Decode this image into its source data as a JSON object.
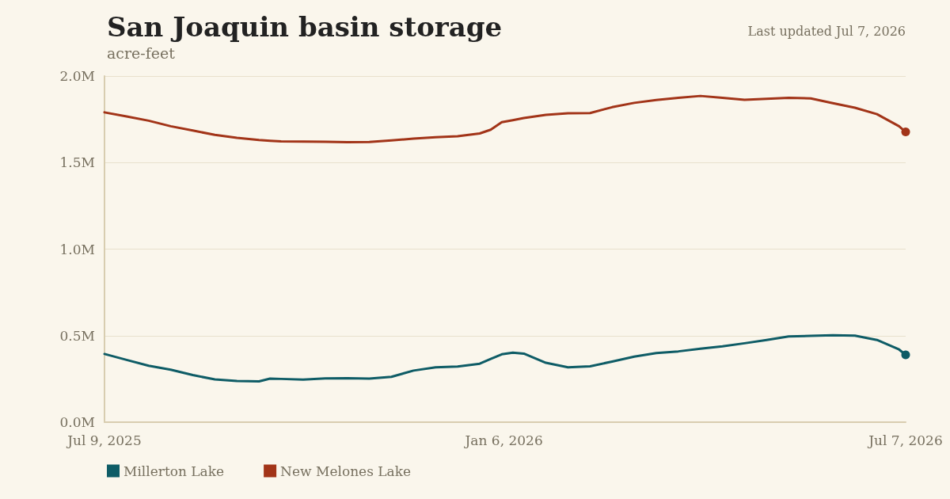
{
  "chart_data": {
    "type": "line",
    "title": "San Joaquin basin storage",
    "subtitle": "acre-feet",
    "annotations": [
      "Last updated Jul 7, 2026"
    ],
    "x": [
      "2025-07-09",
      "2025-07-19",
      "2025-07-29",
      "2025-08-08",
      "2025-08-18",
      "2025-08-28",
      "2025-09-07",
      "2025-09-17",
      "2025-09-22",
      "2025-09-27",
      "2025-10-07",
      "2025-10-17",
      "2025-10-27",
      "2025-11-06",
      "2025-11-16",
      "2025-11-26",
      "2025-12-06",
      "2025-12-16",
      "2025-12-26",
      "2025-12-31",
      "2026-01-05",
      "2026-01-10",
      "2026-01-15",
      "2026-01-25",
      "2026-02-04",
      "2026-02-14",
      "2026-02-24",
      "2026-03-06",
      "2026-03-16",
      "2026-03-26",
      "2026-04-05",
      "2026-04-15",
      "2026-04-25",
      "2026-05-05",
      "2026-05-15",
      "2026-05-25",
      "2026-06-04",
      "2026-06-14",
      "2026-06-24",
      "2026-07-04",
      "2026-07-07"
    ],
    "series": [
      {
        "name": "Millerton Lake",
        "color": "#0e5c66",
        "values": [
          394000,
          360000,
          326000,
          303000,
          272000,
          247000,
          238000,
          236000,
          252000,
          250000,
          246000,
          253000,
          254000,
          252000,
          262000,
          298000,
          317000,
          322000,
          338000,
          366000,
          392000,
          402000,
          396000,
          343000,
          317000,
          323000,
          350000,
          379000,
          399000,
          409000,
          424000,
          438000,
          456000,
          475000,
          495000,
          499000,
          502000,
          500000,
          475000,
          420000,
          389000
        ]
      },
      {
        "name": "New Melones Lake",
        "color": "#a23418",
        "values": [
          1790000,
          1767000,
          1742000,
          1710000,
          1685000,
          1660000,
          1643000,
          1630000,
          1626000,
          1622000,
          1621000,
          1620000,
          1618000,
          1619000,
          1628000,
          1638000,
          1647000,
          1652000,
          1668000,
          1690000,
          1733000,
          1745000,
          1757000,
          1776000,
          1785000,
          1786000,
          1820000,
          1845000,
          1862000,
          1874000,
          1885000,
          1874000,
          1863000,
          1868000,
          1874000,
          1871000,
          1843000,
          1817000,
          1780000,
          1710000,
          1677000
        ]
      }
    ],
    "xlim": [
      "2025-07-09",
      "2026-07-07"
    ],
    "xticks": [
      {
        "value": "2025-07-09",
        "label": "Jul 9, 2025"
      },
      {
        "value": "2026-01-06",
        "label": "Jan 6, 2026"
      },
      {
        "value": "2026-07-07",
        "label": "Jul 7, 2026"
      }
    ],
    "ylim": [
      0,
      2000000
    ],
    "yticks": [
      {
        "value": 0,
        "label": "0.0M"
      },
      {
        "value": 500000,
        "label": "0.5M"
      },
      {
        "value": 1000000,
        "label": "1.0M"
      },
      {
        "value": 1500000,
        "label": "1.5M"
      },
      {
        "value": 2000000,
        "label": "2.0M"
      }
    ],
    "grid": "y",
    "legend": "bottom left",
    "line_style": "solid"
  }
}
